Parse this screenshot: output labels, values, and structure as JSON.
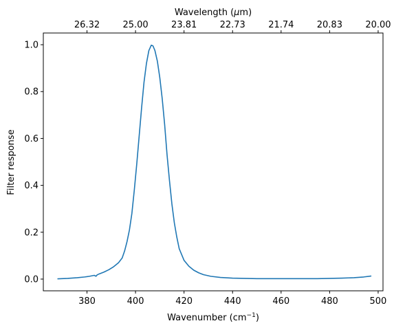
{
  "chart_data": {
    "type": "line",
    "title": "",
    "xlabel": "Wavenumber (cm",
    "xlabel_sup": "−1",
    "xlabel_tail": ")",
    "ylabel": "Filter response",
    "top_xlabel": "Wavelength (",
    "top_xlabel_mu": "μ",
    "top_xlabel_tail": "m)",
    "xlim": [
      362,
      502
    ],
    "ylim": [
      -0.05,
      1.05
    ],
    "grid": false,
    "x_ticks": [
      380,
      400,
      420,
      440,
      460,
      480,
      500
    ],
    "y_ticks": [
      0.0,
      0.2,
      0.4,
      0.6,
      0.8,
      1.0
    ],
    "y_tick_labels": [
      "0.0",
      "0.2",
      "0.4",
      "0.6",
      "0.8",
      "1.0"
    ],
    "top_ticks": [
      {
        "position": 380.0,
        "label": "26.32"
      },
      {
        "position": 400.0,
        "label": "25.00"
      },
      {
        "position": 420.0,
        "label": "23.81"
      },
      {
        "position": 440.0,
        "label": "22.73"
      },
      {
        "position": 460.0,
        "label": "21.74"
      },
      {
        "position": 480.0,
        "label": "20.83"
      },
      {
        "position": 500.0,
        "label": "20.00"
      }
    ],
    "series": [
      {
        "color": "#1f77b4",
        "x": [
          368,
          372,
          376,
          379,
          381,
          383,
          383.7,
          384.2,
          385,
          387,
          389,
          391,
          393,
          394.5,
          395.5,
          396.5,
          397.5,
          398.5,
          399.5,
          400.5,
          401.5,
          402.5,
          403.5,
          404.5,
          405.5,
          406.5,
          407.2,
          408,
          409,
          410,
          411,
          412,
          413,
          414,
          415,
          416,
          417,
          418,
          419,
          420,
          422,
          424,
          426,
          428,
          431,
          435,
          440,
          445,
          450,
          455,
          460,
          465,
          470,
          475,
          480,
          485,
          490,
          494,
          497
        ],
        "y": [
          0.001,
          0.003,
          0.006,
          0.009,
          0.012,
          0.016,
          0.012,
          0.018,
          0.022,
          0.03,
          0.04,
          0.053,
          0.07,
          0.09,
          0.12,
          0.16,
          0.21,
          0.28,
          0.38,
          0.49,
          0.61,
          0.73,
          0.84,
          0.92,
          0.975,
          0.998,
          0.995,
          0.975,
          0.93,
          0.86,
          0.77,
          0.66,
          0.53,
          0.42,
          0.32,
          0.24,
          0.18,
          0.13,
          0.105,
          0.08,
          0.055,
          0.038,
          0.027,
          0.019,
          0.012,
          0.007,
          0.004,
          0.003,
          0.002,
          0.002,
          0.002,
          0.002,
          0.002,
          0.002,
          0.003,
          0.004,
          0.006,
          0.009,
          0.013
        ]
      }
    ]
  }
}
